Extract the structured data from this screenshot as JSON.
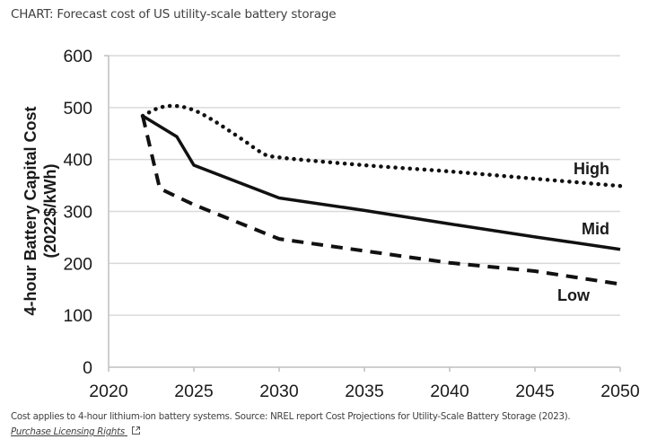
{
  "header": {
    "title": "CHART: Forecast cost of US utility-scale battery storage"
  },
  "footer": {
    "caption": "Cost applies to 4-hour lithium-ion battery systems. Source: NREL report Cost Projections for Utility-Scale Battery Storage (2023).",
    "license_link": "Purchase Licensing Rights",
    "license_icon": "external-link-icon"
  },
  "chart_data": {
    "type": "line",
    "title": "",
    "xlabel": "",
    "ylabel": "4-hour Battery Capital Cost",
    "ylabel_sub": "(2022$/kWh)",
    "xlim": [
      2020,
      2050
    ],
    "ylim": [
      0,
      600
    ],
    "xticks": [
      2020,
      2025,
      2030,
      2035,
      2040,
      2045,
      2050
    ],
    "yticks": [
      0,
      100,
      200,
      300,
      400,
      500,
      600
    ],
    "grid": "horizontal",
    "legend": "inline-right",
    "series": [
      {
        "name": "High",
        "style": "dotted",
        "x": [
          2022,
          2023,
          2024,
          2025,
          2026,
          2027,
          2028,
          2029,
          2030,
          2035,
          2040,
          2045,
          2050
        ],
        "values": [
          484,
          500,
          503,
          495,
          478,
          457,
          435,
          413,
          404,
          389,
          377,
          363,
          349
        ]
      },
      {
        "name": "Mid",
        "style": "solid",
        "x": [
          2022,
          2024,
          2025,
          2030,
          2035,
          2040,
          2045,
          2050
        ],
        "values": [
          484,
          444,
          389,
          326,
          302,
          276,
          251,
          227
        ]
      },
      {
        "name": "Low",
        "style": "dashed",
        "x": [
          2022,
          2023,
          2025,
          2030,
          2035,
          2040,
          2045,
          2050
        ],
        "values": [
          484,
          344,
          313,
          247,
          224,
          201,
          185,
          160
        ]
      }
    ]
  },
  "colors": {
    "line": "#111111",
    "grid": "#d9d9d9",
    "axis": "#bfbfbf",
    "text": "#404040"
  }
}
